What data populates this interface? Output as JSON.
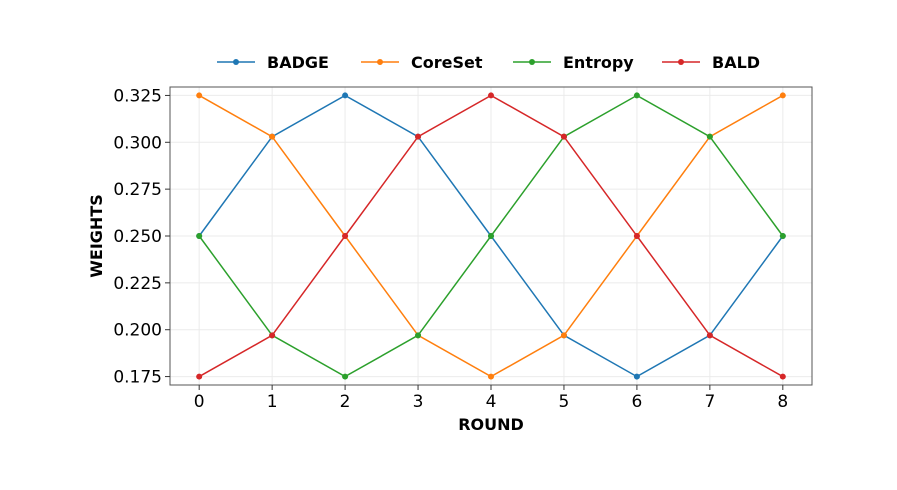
{
  "chart_data": {
    "type": "line",
    "x": [
      0,
      1,
      2,
      3,
      4,
      5,
      6,
      7,
      8
    ],
    "xlabel": "ROUND",
    "ylabel": "WEIGHTS",
    "xlim": [
      -0.4,
      8.4
    ],
    "ylim": [
      0.1705,
      0.3295
    ],
    "yticks": [
      0.175,
      0.2,
      0.225,
      0.25,
      0.275,
      0.3,
      0.325
    ],
    "ytick_labels": [
      "0.175",
      "0.200",
      "0.225",
      "0.250",
      "0.275",
      "0.300",
      "0.325"
    ],
    "xticks": [
      0,
      1,
      2,
      3,
      4,
      5,
      6,
      7,
      8
    ],
    "xtick_labels": [
      "0",
      "1",
      "2",
      "3",
      "4",
      "5",
      "6",
      "7",
      "8"
    ],
    "grid": true,
    "legend_position": "top",
    "series": [
      {
        "name": "BADGE",
        "color": "#1f77b4",
        "values": [
          0.25,
          0.303,
          0.325,
          0.303,
          0.25,
          0.197,
          0.175,
          0.197,
          0.25
        ]
      },
      {
        "name": "CoreSet",
        "color": "#ff7f0e",
        "values": [
          0.325,
          0.303,
          0.25,
          0.197,
          0.175,
          0.197,
          0.25,
          0.303,
          0.325
        ]
      },
      {
        "name": "Entropy",
        "color": "#2ca02c",
        "values": [
          0.25,
          0.197,
          0.175,
          0.197,
          0.25,
          0.303,
          0.325,
          0.303,
          0.25
        ]
      },
      {
        "name": "BALD",
        "color": "#d62728",
        "values": [
          0.175,
          0.197,
          0.25,
          0.303,
          0.325,
          0.303,
          0.25,
          0.197,
          0.175
        ]
      }
    ]
  }
}
